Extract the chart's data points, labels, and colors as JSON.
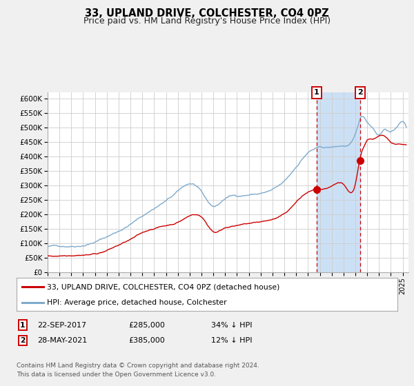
{
  "title": "33, UPLAND DRIVE, COLCHESTER, CO4 0PZ",
  "subtitle": "Price paid vs. HM Land Registry's House Price Index (HPI)",
  "ylim": [
    0,
    620000
  ],
  "yticks": [
    0,
    50000,
    100000,
    150000,
    200000,
    250000,
    300000,
    350000,
    400000,
    450000,
    500000,
    550000,
    600000
  ],
  "ytick_labels": [
    "£0",
    "£50K",
    "£100K",
    "£150K",
    "£200K",
    "£250K",
    "£300K",
    "£350K",
    "£400K",
    "£450K",
    "£500K",
    "£550K",
    "£600K"
  ],
  "xlim_start": 1995.0,
  "xlim_end": 2025.5,
  "marker1_x": 2017.72,
  "marker1_y": 285000,
  "marker2_x": 2021.41,
  "marker2_y": 385000,
  "event1_date": "22-SEP-2017",
  "event1_price": "£285,000",
  "event1_hpi": "34% ↓ HPI",
  "event2_date": "28-MAY-2021",
  "event2_price": "£385,000",
  "event2_hpi": "12% ↓ HPI",
  "legend_line1": "33, UPLAND DRIVE, COLCHESTER, CO4 0PZ (detached house)",
  "legend_line2": "HPI: Average price, detached house, Colchester",
  "footer_line1": "Contains HM Land Registry data © Crown copyright and database right 2024.",
  "footer_line2": "This data is licensed under the Open Government Licence v3.0.",
  "red_color": "#cc0000",
  "blue_color": "#7faacc",
  "bg_color": "#f0f0f0",
  "plot_bg": "#ffffff",
  "grid_color": "#cccccc",
  "highlight_color": "#cce0f5",
  "title_fontsize": 10.5,
  "subtitle_fontsize": 9
}
